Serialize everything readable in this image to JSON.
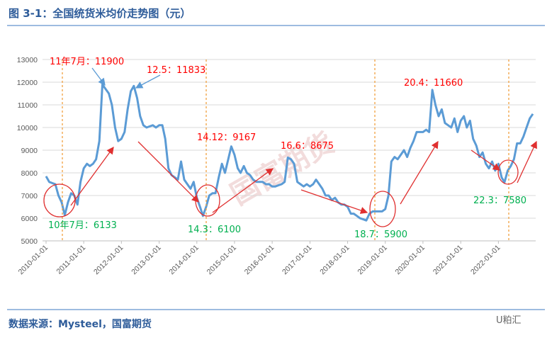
{
  "chart_data": {
    "type": "line",
    "title": "图 3-1：全国统货米均价走势图（元）",
    "source": "数据来源：Mysteel，国富期货",
    "brand": "U粕汇",
    "watermark": "国富期货",
    "x": [
      "2010-01-01",
      "2010-02-01",
      "2010-03-01",
      "2010-04-01",
      "2010-05-01",
      "2010-06-01",
      "2010-07-01",
      "2010-08-01",
      "2010-09-01",
      "2010-10-01",
      "2010-11-01",
      "2010-12-01",
      "2011-01-01",
      "2011-02-01",
      "2011-03-01",
      "2011-04-01",
      "2011-05-01",
      "2011-06-01",
      "2011-07-01",
      "2011-08-01",
      "2011-09-01",
      "2011-10-01",
      "2011-11-01",
      "2011-12-01",
      "2012-01-01",
      "2012-02-01",
      "2012-03-01",
      "2012-04-01",
      "2012-05-01",
      "2012-06-01",
      "2012-07-01",
      "2012-08-01",
      "2012-09-01",
      "2012-10-01",
      "2012-11-01",
      "2012-12-01",
      "2013-01-01",
      "2013-02-01",
      "2013-03-01",
      "2013-04-01",
      "2013-05-01",
      "2013-06-01",
      "2013-07-01",
      "2013-08-01",
      "2013-09-01",
      "2013-10-01",
      "2013-11-01",
      "2013-12-01",
      "2014-01-01",
      "2014-02-01",
      "2014-03-01",
      "2014-04-01",
      "2014-05-01",
      "2014-06-01",
      "2014-07-01",
      "2014-08-01",
      "2014-09-01",
      "2014-10-01",
      "2014-11-01",
      "2014-12-01",
      "2015-01-01",
      "2015-02-01",
      "2015-03-01",
      "2015-04-01",
      "2015-05-01",
      "2015-06-01",
      "2015-07-01",
      "2015-08-01",
      "2015-09-01",
      "2015-10-01",
      "2015-11-01",
      "2015-12-01",
      "2016-01-01",
      "2016-02-01",
      "2016-03-01",
      "2016-04-01",
      "2016-05-01",
      "2016-06-01",
      "2016-07-01",
      "2016-08-01",
      "2016-09-01",
      "2016-10-01",
      "2016-11-01",
      "2016-12-01",
      "2017-01-01",
      "2017-02-01",
      "2017-03-01",
      "2017-04-01",
      "2017-05-01",
      "2017-06-01",
      "2017-07-01",
      "2017-08-01",
      "2017-09-01",
      "2017-10-01",
      "2017-11-01",
      "2017-12-01",
      "2018-01-01",
      "2018-02-01",
      "2018-03-01",
      "2018-04-01",
      "2018-05-01",
      "2018-06-01",
      "2018-07-01",
      "2018-08-01",
      "2018-09-01",
      "2018-10-01",
      "2018-11-01",
      "2018-12-01",
      "2019-01-01",
      "2019-02-01",
      "2019-03-01",
      "2019-04-01",
      "2019-05-01",
      "2019-06-01",
      "2019-07-01",
      "2019-08-01",
      "2019-09-01",
      "2019-10-01",
      "2019-11-01",
      "2019-12-01",
      "2020-01-01",
      "2020-02-01",
      "2020-03-01",
      "2020-04-01",
      "2020-05-01",
      "2020-06-01",
      "2020-07-01",
      "2020-08-01",
      "2020-09-01",
      "2020-10-01",
      "2020-11-01",
      "2020-12-01",
      "2021-01-01",
      "2021-02-01",
      "2021-03-01",
      "2021-04-01",
      "2021-05-01",
      "2021-06-01",
      "2021-07-01",
      "2021-08-01",
      "2021-09-01",
      "2021-10-01",
      "2021-11-01",
      "2021-12-01",
      "2022-01-01",
      "2022-02-01",
      "2022-03-01",
      "2022-04-01",
      "2022-05-01",
      "2022-06-01",
      "2022-07-01",
      "2022-08-01",
      "2022-09-01",
      "2022-10-01",
      "2022-11-01",
      "2022-12-01"
    ],
    "series": [
      {
        "color": "#5b9bd5",
        "values": [
          7850,
          7600,
          7550,
          7500,
          7000,
          6700,
          6133,
          6700,
          7100,
          7000,
          6600,
          7600,
          8200,
          8400,
          8300,
          8400,
          8600,
          9400,
          11900,
          11700,
          11500,
          11000,
          10000,
          9400,
          9500,
          9800,
          10800,
          11600,
          11833,
          11300,
          10500,
          10100,
          10000,
          10050,
          10100,
          10000,
          10100,
          10100,
          9500,
          8200,
          7900,
          7800,
          7700,
          8500,
          7700,
          7500,
          7300,
          7600,
          6900,
          6500,
          6100,
          6500,
          7000,
          7100,
          7100,
          7800,
          8400,
          8000,
          8600,
          9167,
          8800,
          8200,
          8000,
          8300,
          8000,
          7900,
          7700,
          7600,
          7600,
          7600,
          7500,
          7500,
          7400,
          7400,
          7450,
          7500,
          7600,
          8675,
          8600,
          8400,
          7600,
          7500,
          7400,
          7500,
          7400,
          7500,
          7700,
          7500,
          7300,
          7000,
          7000,
          6800,
          6900,
          6700,
          6600,
          6600,
          6500,
          6200,
          6200,
          6100,
          6000,
          5950,
          5900,
          6200,
          6300,
          6300,
          6300,
          6300,
          6400,
          7000,
          8500,
          8700,
          8600,
          8800,
          9000,
          8700,
          9100,
          9400,
          9800,
          9800,
          9800,
          9900,
          9800,
          11660,
          11000,
          10500,
          10800,
          10200,
          10100,
          10000,
          10400,
          9800,
          10300,
          10500,
          10000,
          10300,
          9500,
          9200,
          8700,
          8900,
          8400,
          8200,
          8500,
          8100,
          8400,
          7800,
          7580,
          8100,
          8300,
          8600,
          9300,
          9300,
          9600,
          10000,
          10400,
          10600
        ]
      }
    ],
    "xlim": [
      "2010-01-01",
      "2022-12-01"
    ],
    "xticks": [
      "2010-01-01",
      "2011-01-01",
      "2012-01-01",
      "2013-01-01",
      "2014-01-01",
      "2015-01-01",
      "2016-01-01",
      "2017-01-01",
      "2018-01-01",
      "2019-01-01",
      "2020-01-01",
      "2021-01-01",
      "2022-01-01"
    ],
    "ylim": [
      5000,
      13000
    ],
    "yticks": [
      5000,
      6000,
      7000,
      8000,
      9000,
      10000,
      11000,
      12000,
      13000
    ],
    "grid": true,
    "annotations": [
      {
        "text": "11年7月：11900",
        "color": "#ff0000"
      },
      {
        "text": "12.5：11833",
        "color": "#ff0000"
      },
      {
        "text": "14.12：9167",
        "color": "#ff0000"
      },
      {
        "text": "16.6：8675",
        "color": "#ff0000"
      },
      {
        "text": "20.4：11660",
        "color": "#ff0000"
      },
      {
        "text": "10年7月：6133",
        "color": "#00b050"
      },
      {
        "text": "14.3：6100",
        "color": "#00b050"
      },
      {
        "text": "18.7：5900",
        "color": "#00b050"
      },
      {
        "text": "22.3：7580",
        "color": "#00b050"
      }
    ]
  }
}
